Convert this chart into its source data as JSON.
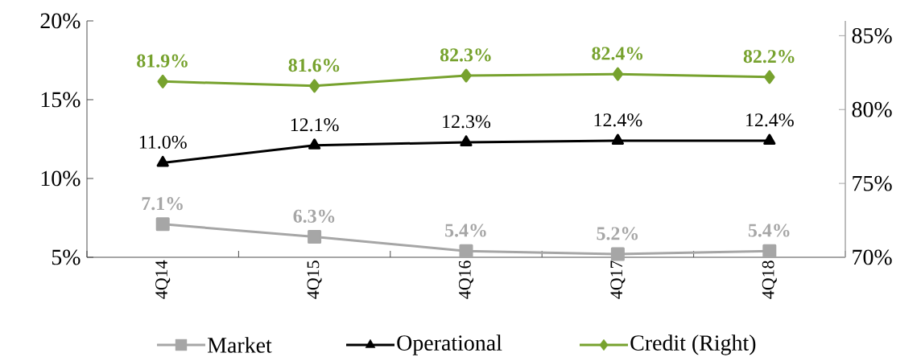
{
  "chart_data": {
    "type": "line",
    "categories": [
      "4Q14",
      "4Q15",
      "4Q16",
      "4Q17",
      "4Q18"
    ],
    "series": [
      {
        "name": "Market",
        "color": "#a6a6a6",
        "marker": "square",
        "values": [
          7.1,
          6.3,
          5.4,
          5.2,
          5.4
        ],
        "value_labels": [
          "7.1%",
          "6.3%",
          "5.4%",
          "5.2%",
          "5.4%"
        ]
      },
      {
        "name": "Operational",
        "color": "#000000",
        "marker": "triangle",
        "values": [
          11.0,
          12.1,
          12.3,
          12.4,
          12.4
        ],
        "value_labels": [
          "11.0%",
          "12.1%",
          "12.3%",
          "12.4%",
          "12.4%"
        ]
      },
      {
        "name": "Credit (Right)",
        "color": "#77a22e",
        "marker": "diamond",
        "axis": "y2",
        "values": [
          81.9,
          81.6,
          82.3,
          82.4,
          82.2
        ],
        "value_labels": [
          "81.9%",
          "81.6%",
          "82.3%",
          "82.4%",
          "82.2%"
        ]
      }
    ],
    "ylim": [
      5,
      20
    ],
    "yticks": [
      {
        "value": 5,
        "label": "5%"
      },
      {
        "value": 10,
        "label": "10%"
      },
      {
        "value": 15,
        "label": "15%"
      },
      {
        "value": 20,
        "label": "20%"
      }
    ],
    "y2lim": [
      70,
      86
    ],
    "y2ticks": [
      {
        "value": 70,
        "label": "70%"
      },
      {
        "value": 75,
        "label": "75%"
      },
      {
        "value": 80,
        "label": "80%"
      },
      {
        "value": 85,
        "label": "85%"
      }
    ],
    "grid": false,
    "legend": "bottom",
    "line_style": "solid"
  }
}
